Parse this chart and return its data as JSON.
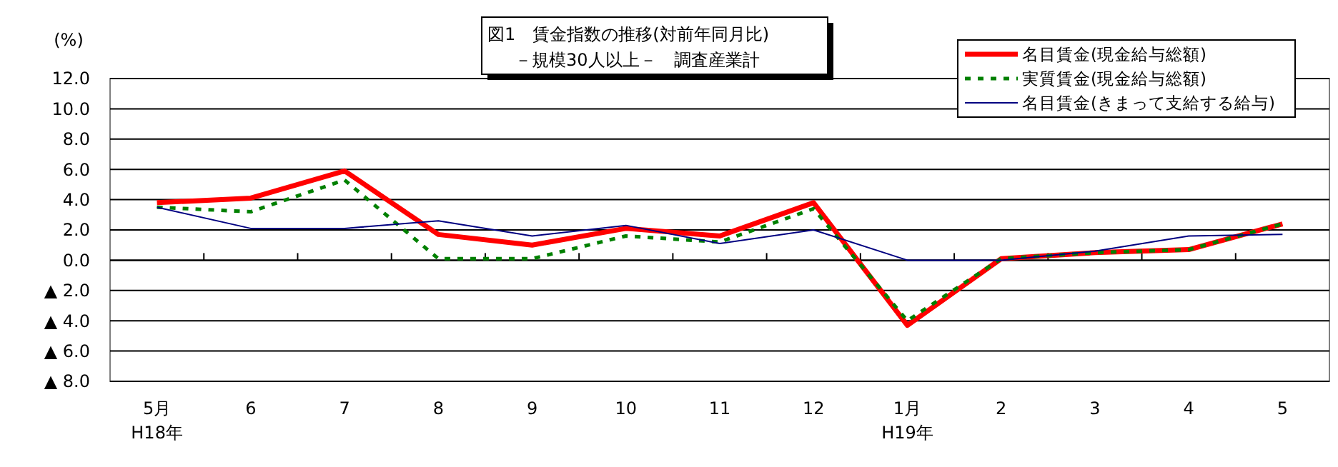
{
  "chart_data": {
    "type": "line",
    "title": "図1　賃金指数の推移(対前年同月比)",
    "subtitle": "－規模30人以上－　調査産業計",
    "ylabel": "(%)",
    "categories": [
      "5月\nH18年",
      "6",
      "7",
      "8",
      "9",
      "10",
      "11",
      "12",
      "1月\nH19年",
      "2",
      "3",
      "4",
      "5"
    ],
    "series": [
      {
        "name": "名目賃金(現金給与総額)",
        "color": "#ff0000",
        "line_style": "solid",
        "values": [
          3.8,
          4.1,
          5.9,
          1.7,
          1.0,
          2.1,
          1.6,
          3.8,
          -4.3,
          0.1,
          0.5,
          0.7,
          2.4
        ]
      },
      {
        "name": "実質賃金(現金給与総額)",
        "color": "#008000",
        "line_style": "dashed",
        "values": [
          3.5,
          3.2,
          5.3,
          0.1,
          0.1,
          1.6,
          1.2,
          3.4,
          -4.0,
          0.1,
          0.5,
          0.7,
          2.4
        ]
      },
      {
        "name": "名目賃金(きまって支給する給与)",
        "color": "#000080",
        "line_style": "solid",
        "values": [
          3.5,
          2.1,
          2.1,
          2.6,
          1.6,
          2.3,
          1.1,
          2.0,
          0.0,
          0.0,
          0.6,
          1.6,
          1.7
        ]
      }
    ],
    "ylim": [
      -8,
      12
    ],
    "yticks": [
      {
        "value": 12,
        "label": "12.0"
      },
      {
        "value": 10,
        "label": "10.0"
      },
      {
        "value": 8,
        "label": "8.0"
      },
      {
        "value": 6,
        "label": "6.0"
      },
      {
        "value": 4,
        "label": "4.0"
      },
      {
        "value": 2,
        "label": "2.0"
      },
      {
        "value": 0,
        "label": "0.0"
      },
      {
        "value": -2,
        "label": "▲ 2.0"
      },
      {
        "value": -4,
        "label": "▲ 4.0"
      },
      {
        "value": -6,
        "label": "▲ 6.0"
      },
      {
        "value": -8,
        "label": "▲ 8.0"
      }
    ],
    "grid": "y",
    "legend": "top right",
    "marker": "none"
  }
}
